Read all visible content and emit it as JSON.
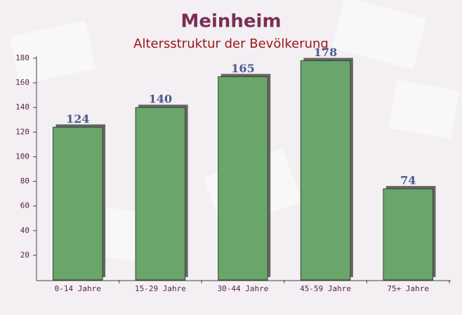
{
  "chart_data": {
    "type": "bar",
    "title": "Meinheim",
    "subtitle": "Altersstruktur der Bevölkerung",
    "categories": [
      "0-14 Jahre",
      "15-29 Jahre",
      "30-44 Jahre",
      "45-59 Jahre",
      "75+ Jahre"
    ],
    "values": [
      124,
      140,
      165,
      178,
      74
    ],
    "color": "#6aa56a",
    "ylim": [
      0,
      180
    ],
    "yticks": [
      20,
      40,
      60,
      80,
      100,
      120,
      140,
      160,
      180
    ]
  }
}
